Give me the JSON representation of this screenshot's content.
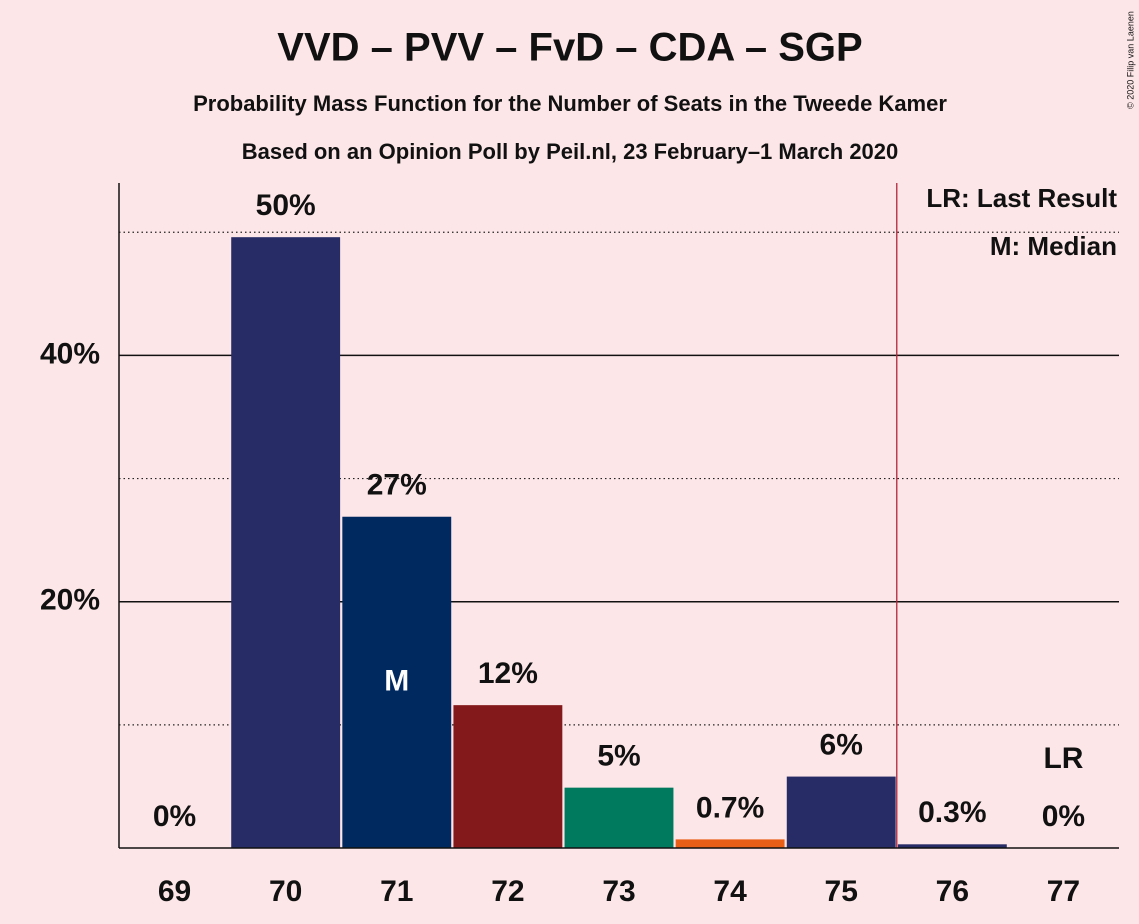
{
  "chart_data": {
    "type": "bar",
    "title": "VVD – PVV – FvD – CDA – SGP",
    "subtitle": "Probability Mass Function for the Number of Seats in the Tweede Kamer",
    "subtitle2": "Based on an Opinion Poll by Peil.nl, 23 February–1 March 2020",
    "copyright": "© 2020 Filip van Laenen",
    "categories": [
      "69",
      "70",
      "71",
      "72",
      "73",
      "74",
      "75",
      "76",
      "77"
    ],
    "values": [
      0,
      49.6,
      26.9,
      11.6,
      4.9,
      0.7,
      5.8,
      0.3,
      0
    ],
    "value_labels": [
      "0%",
      "50%",
      "27%",
      "12%",
      "5%",
      "0.7%",
      "6%",
      "0.3%",
      "0%"
    ],
    "colors": [
      "#272b66",
      "#272b66",
      "#002a5f",
      "#84191b",
      "#007a5e",
      "#e86017",
      "#272b66",
      "#272b66",
      "#272b66"
    ],
    "ylim": [
      0,
      54
    ],
    "yticks": [
      {
        "value": 20,
        "label": "20%"
      },
      {
        "value": 40,
        "label": "40%"
      }
    ],
    "minor_yticks": [
      10,
      30,
      50
    ],
    "grid": true,
    "median_index": 2,
    "median_label": "M",
    "last_result_index": 8,
    "last_result_label": "LR",
    "vline": 75.5,
    "legend": [
      "LR: Last Result",
      "M: Median"
    ],
    "legend_position": "upper right"
  }
}
